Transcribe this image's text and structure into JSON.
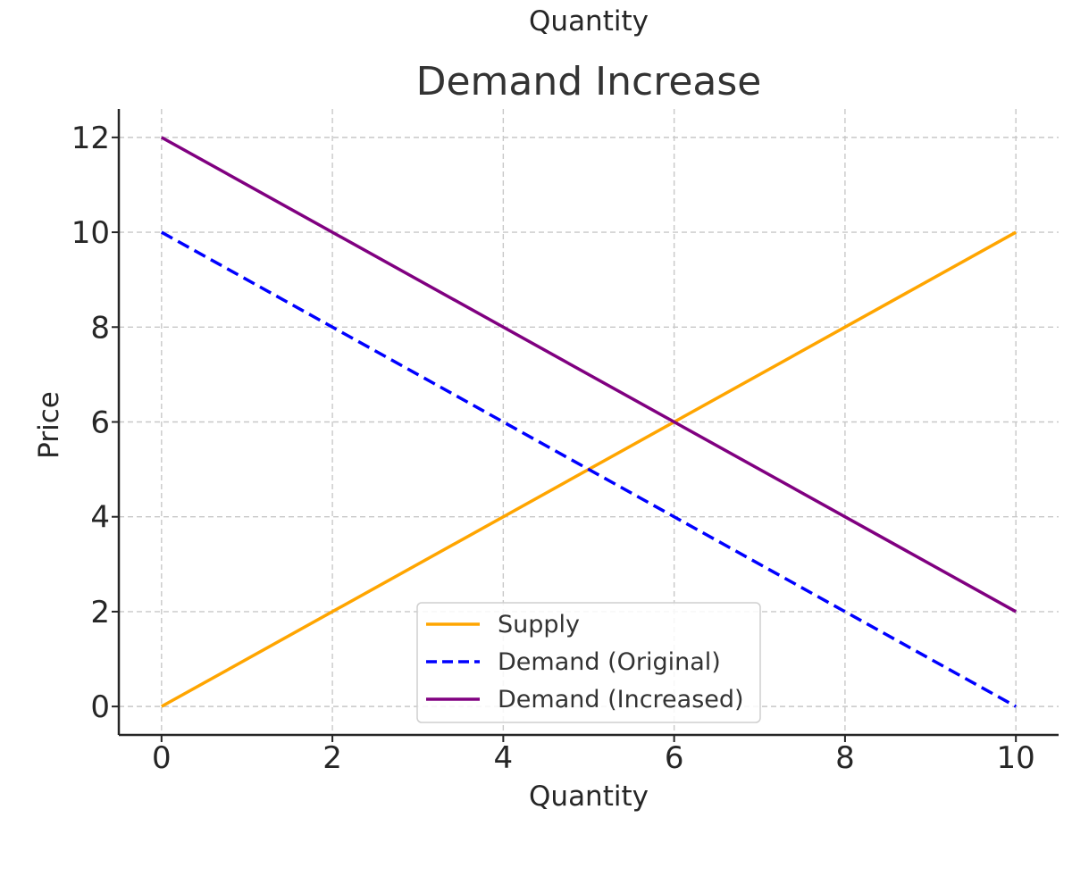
{
  "chart_data": {
    "type": "line",
    "top_label": "Quantity",
    "title": "Demand Increase",
    "xlabel": "Quantity",
    "ylabel": "Price",
    "xlim": [
      -0.5,
      10.5
    ],
    "ylim": [
      -0.6,
      12.6
    ],
    "xticks": [
      0,
      2,
      4,
      6,
      8,
      10
    ],
    "yticks": [
      0,
      2,
      4,
      6,
      8,
      10,
      12
    ],
    "grid": true,
    "legend_position": "bottom-center",
    "series": [
      {
        "name": "Supply",
        "color": "#FFA500",
        "dash": "solid",
        "x": [
          0,
          10
        ],
        "y": [
          0,
          10
        ]
      },
      {
        "name": "Demand (Original)",
        "color": "#0000FF",
        "dash": "dashed",
        "x": [
          0,
          10
        ],
        "y": [
          10,
          0
        ]
      },
      {
        "name": "Demand (Increased)",
        "color": "#800080",
        "dash": "solid",
        "x": [
          0,
          10
        ],
        "y": [
          12,
          2
        ]
      }
    ]
  }
}
